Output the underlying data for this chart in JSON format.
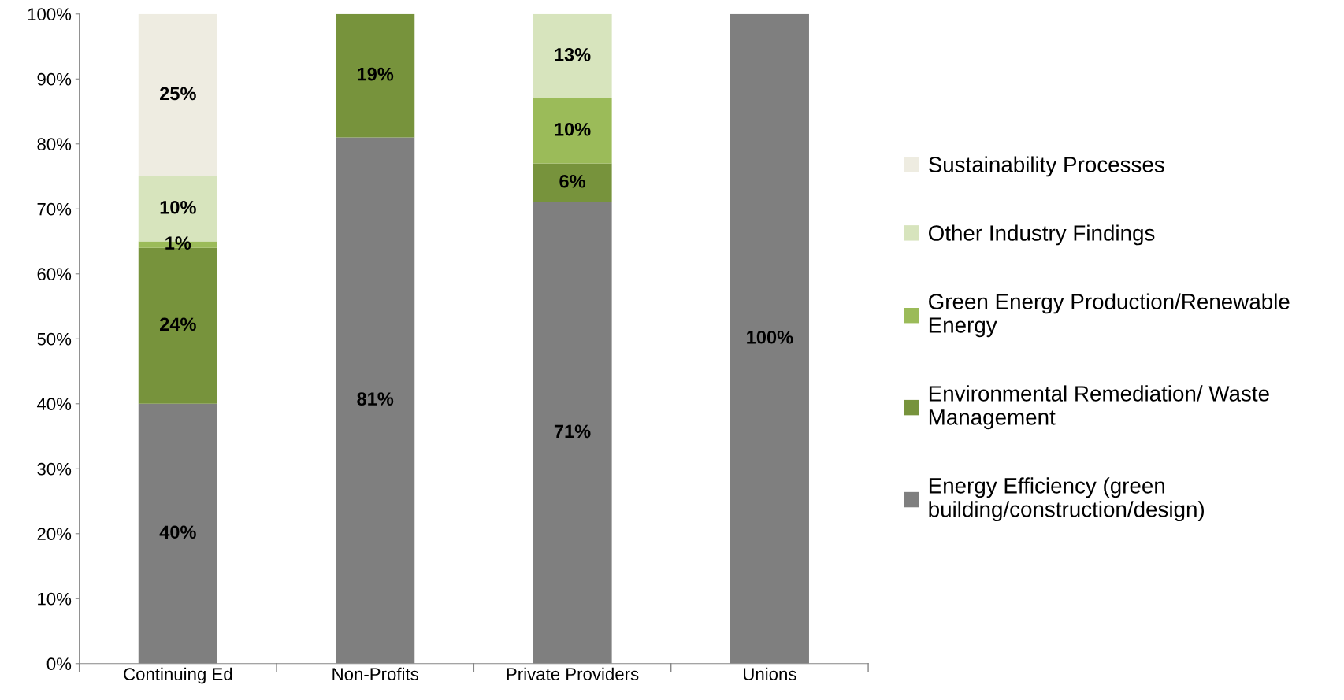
{
  "chart_data": {
    "type": "bar",
    "stacked": true,
    "categories": [
      "Continuing Ed",
      "Non-Profits",
      "Private Providers",
      "Unions"
    ],
    "series": [
      {
        "name": "Energy Efficiency (green building/construction/design)",
        "color": "#7f7f7f",
        "values": [
          40,
          81,
          71,
          100
        ],
        "value_labels": [
          "40%",
          "81%",
          "71%",
          "100%"
        ]
      },
      {
        "name": "Environmental Remediation/ Waste Management",
        "color": "#77933c",
        "values": [
          24,
          19,
          6,
          null
        ],
        "value_labels": [
          "24%",
          "19%",
          "6%",
          null
        ]
      },
      {
        "name": "Green Energy Production/Renewable Energy",
        "color": "#9bbb59",
        "values": [
          1,
          null,
          10,
          null
        ],
        "value_labels": [
          "1%",
          null,
          "10%",
          null
        ]
      },
      {
        "name": "Other Industry Findings",
        "color": "#d7e4bd",
        "values": [
          10,
          null,
          13,
          null
        ],
        "value_labels": [
          "10%",
          null,
          "13%",
          null
        ]
      },
      {
        "name": "Sustainability Processes",
        "color": "#eeece1",
        "values": [
          25,
          null,
          null,
          null
        ],
        "value_labels": [
          "25%",
          null,
          null,
          null
        ]
      }
    ],
    "ylim": [
      0,
      100
    ],
    "yticks": [
      {
        "value": 0,
        "label": "0%"
      },
      {
        "value": 10,
        "label": "10%"
      },
      {
        "value": 20,
        "label": "20%"
      },
      {
        "value": 30,
        "label": "30%"
      },
      {
        "value": 40,
        "label": "40%"
      },
      {
        "value": 50,
        "label": "50%"
      },
      {
        "value": 60,
        "label": "60%"
      },
      {
        "value": 70,
        "label": "70%"
      },
      {
        "value": 80,
        "label": "80%"
      },
      {
        "value": 90,
        "label": "90%"
      },
      {
        "value": 100,
        "label": "100%"
      }
    ],
    "grid": false,
    "legend": "right"
  }
}
